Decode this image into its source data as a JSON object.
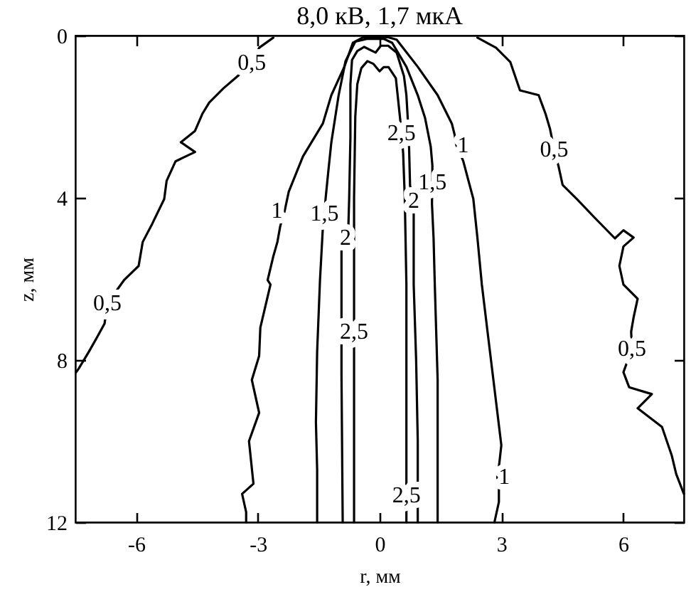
{
  "chart_data": {
    "type": "line",
    "title": "8,0 кВ, 1,7 мкА",
    "xlabel": "r, мм",
    "ylabel": "z, мм",
    "xlim": [
      -7.5,
      7.5
    ],
    "ylim": [
      12,
      0
    ],
    "xticks": [
      -6,
      -3,
      0,
      3,
      6
    ],
    "yticks": [
      0,
      4,
      8,
      12
    ],
    "series": [
      {
        "color": "#000000",
        "x": [
          -2.62,
          -2.97,
          -3.15,
          -3.5,
          -3.85,
          -4.2,
          -4.37,
          -4.55,
          -4.9,
          -4.55,
          -5.03,
          -5.25,
          -5.31,
          -5.6,
          -5.84,
          -5.94,
          -6.3,
          -6.71,
          -6.78,
          -6.96,
          -7.17,
          -7.41,
          -7.48
        ],
        "values": [
          0.05,
          0.3,
          0.67,
          1.0,
          1.3,
          1.65,
          1.93,
          2.35,
          2.63,
          2.87,
          3.1,
          3.58,
          4.03,
          4.63,
          5.09,
          5.68,
          6.03,
          6.6,
          7.1,
          7.43,
          7.8,
          8.2,
          8.3
        ]
      },
      {
        "color": "#000000",
        "x": [
          2.41,
          2.87,
          3.22,
          3.46,
          3.92,
          4.09,
          4.2,
          4.3,
          4.41,
          4.51,
          4.86,
          5.31,
          5.8,
          6.01,
          6.26,
          6.01,
          5.91,
          6.01,
          6.36,
          6.26,
          6.2,
          6.22,
          6.01,
          6.15,
          6.71,
          6.36,
          6.96,
          7.2,
          7.31,
          7.5
        ],
        "values": [
          0.05,
          0.3,
          0.65,
          1.35,
          1.47,
          1.93,
          2.3,
          2.8,
          3.22,
          3.68,
          4.03,
          4.5,
          5.0,
          4.8,
          4.98,
          5.2,
          5.68,
          6.14,
          6.49,
          6.95,
          7.3,
          7.72,
          8.3,
          8.67,
          8.84,
          9.19,
          9.65,
          10.35,
          10.81,
          11.3
        ]
      },
      {
        "color": "#000000",
        "x": [
          -3.29,
          -3.29,
          -3.39,
          -3.11,
          -3.22,
          -2.97,
          -3.15,
          -2.97,
          -2.94,
          -2.69,
          -2.76,
          -2.62,
          -2.52,
          -2.45,
          -2.34,
          -2.24,
          -1.89,
          -1.4,
          -1.19,
          -0.87,
          -0.66,
          -0.4,
          0.2,
          0.42,
          0.94,
          1.43,
          1.78,
          1.85,
          1.89,
          2.0,
          2.06,
          2.31,
          2.41,
          2.52,
          2.66,
          2.83,
          3.0,
          2.95,
          2.9,
          2.94,
          2.94,
          2.83
        ],
        "values": [
          12,
          11.75,
          11.3,
          11.05,
          10.0,
          9.3,
          8.49,
          7.9,
          7.2,
          6.14,
          6.03,
          5.44,
          5.09,
          4.7,
          4.32,
          3.85,
          2.98,
          2.17,
          1.47,
          0.77,
          0.18,
          0.04,
          0.04,
          0.1,
          0.77,
          1.47,
          2.17,
          2.45,
          2.7,
          2.95,
          3.09,
          4.03,
          4.98,
          6.14,
          7.3,
          8.7,
          10.1,
          10.55,
          10.88,
          11.2,
          11.5,
          12
        ]
      },
      {
        "color": "#000000",
        "x": [
          -1.54,
          -1.54,
          -1.57,
          -1.54,
          -1.47,
          -1.4,
          -1.36,
          -1.33,
          -1.26,
          -1.19,
          -1.01,
          -0.84,
          -0.6,
          -0.3,
          0.1,
          0.31,
          0.66,
          0.94,
          1.12,
          1.26,
          1.3,
          1.3,
          1.29,
          1.33,
          1.36,
          1.43,
          1.43,
          1.43
        ],
        "values": [
          12,
          10.7,
          9.54,
          7.79,
          6.03,
          4.75,
          4.39,
          4.0,
          3.3,
          2.63,
          1.47,
          0.63,
          0.15,
          0.08,
          0.08,
          0.18,
          0.77,
          1.47,
          2.03,
          2.74,
          3.2,
          3.61,
          4.14,
          5.0,
          6.14,
          8.49,
          10.25,
          12
        ]
      },
      {
        "color": "#000000",
        "x": [
          -0.91,
          -0.94,
          -0.94,
          -0.94,
          -0.84,
          -0.77,
          -0.75,
          -0.72,
          -0.72,
          -0.68,
          -0.55,
          -0.38,
          -0.1,
          0.03,
          0.21,
          0.42,
          0.6,
          0.66,
          0.72,
          0.75,
          0.84,
          0.84,
          0.84,
          0.9,
          0.94,
          0.94
        ],
        "values": [
          12,
          8.35,
          5.44,
          5.3,
          4.98,
          4.7,
          4.0,
          2.5,
          1.2,
          0.6,
          0.38,
          0.28,
          0.42,
          0.25,
          0.25,
          0.42,
          1.0,
          1.47,
          2.5,
          3.7,
          4.07,
          4.45,
          6.14,
          8.0,
          10.0,
          12
        ]
      },
      {
        "color": "#000000",
        "x": [
          -0.63,
          -0.63,
          -0.63,
          -0.63,
          -0.63,
          -0.63,
          -0.6,
          -0.55,
          -0.45,
          -0.3,
          -0.15,
          0.0,
          0.1,
          0.22,
          0.4,
          0.5,
          0.54,
          0.58,
          0.62,
          0.66,
          0.66,
          0.66,
          0.66,
          0.66,
          0.66
        ],
        "values": [
          12,
          9.0,
          7.65,
          7.3,
          6.95,
          4.0,
          2.0,
          1.2,
          0.8,
          0.63,
          0.7,
          0.88,
          0.78,
          0.78,
          1.05,
          2.0,
          2.4,
          2.9,
          4.0,
          6.14,
          8.5,
          10.9,
          11.33,
          11.75,
          12
        ]
      }
    ],
    "annotations": [
      {
        "text": "0,5",
        "x": -3.15,
        "y": 0.67
      },
      {
        "text": "0,5",
        "x": -6.71,
        "y": 6.6
      },
      {
        "text": "0,5",
        "x": 4.3,
        "y": 2.8
      },
      {
        "text": "0,5",
        "x": 6.22,
        "y": 7.72
      },
      {
        "text": "1",
        "x": -2.53,
        "y": 4.32
      },
      {
        "text": "1",
        "x": 2.06,
        "y": 2.7
      },
      {
        "text": "1",
        "x": 3.07,
        "y": 10.88
      },
      {
        "text": "1,5",
        "x": -1.36,
        "y": 4.39
      },
      {
        "text": "1,5",
        "x": 1.3,
        "y": 3.61
      },
      {
        "text": "2",
        "x": -0.84,
        "y": 4.98
      },
      {
        "text": "2",
        "x": 0.84,
        "y": 4.07
      },
      {
        "text": "2,5",
        "x": 0.54,
        "y": 2.4
      },
      {
        "text": "2,5",
        "x": -0.63,
        "y": 7.3
      },
      {
        "text": "2,5",
        "x": 0.66,
        "y": 11.33
      }
    ]
  }
}
